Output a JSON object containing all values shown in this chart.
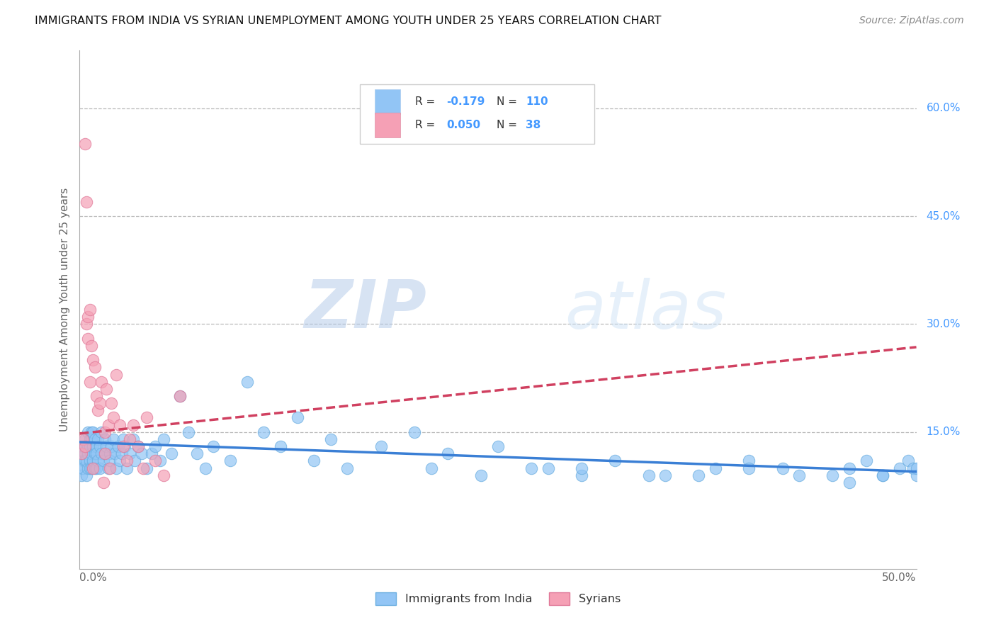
{
  "title": "IMMIGRANTS FROM INDIA VS SYRIAN UNEMPLOYMENT AMONG YOUTH UNDER 25 YEARS CORRELATION CHART",
  "source": "Source: ZipAtlas.com",
  "ylabel": "Unemployment Among Youth under 25 years",
  "ytick_labels": [
    "15.0%",
    "30.0%",
    "45.0%",
    "60.0%"
  ],
  "ytick_vals": [
    0.15,
    0.3,
    0.45,
    0.6
  ],
  "xmin": 0.0,
  "xmax": 0.5,
  "ymin": -0.04,
  "ymax": 0.68,
  "legend_india_R": "-0.179",
  "legend_india_N": "110",
  "legend_syria_R": "0.050",
  "legend_syria_N": "38",
  "india_color": "#92c5f5",
  "india_edge_color": "#6aaee0",
  "syria_color": "#f5a0b5",
  "syria_edge_color": "#e07898",
  "india_line_color": "#3a7fd5",
  "syria_line_color": "#d04060",
  "text_color_blue": "#4499ff",
  "watermark_zip": "ZIP",
  "watermark_atlas": "atlas",
  "india_trend_x0": 0.0,
  "india_trend_x1": 0.5,
  "india_trend_y0": 0.136,
  "india_trend_y1": 0.095,
  "syria_trend_x0": 0.0,
  "syria_trend_x1": 0.5,
  "syria_trend_y0": 0.148,
  "syria_trend_y1": 0.268,
  "india_scatter_x": [
    0.001,
    0.001,
    0.001,
    0.002,
    0.002,
    0.002,
    0.003,
    0.003,
    0.003,
    0.004,
    0.004,
    0.004,
    0.005,
    0.005,
    0.005,
    0.005,
    0.006,
    0.006,
    0.006,
    0.006,
    0.007,
    0.007,
    0.007,
    0.007,
    0.008,
    0.008,
    0.008,
    0.009,
    0.009,
    0.009,
    0.01,
    0.01,
    0.01,
    0.011,
    0.011,
    0.012,
    0.012,
    0.013,
    0.013,
    0.014,
    0.015,
    0.015,
    0.016,
    0.017,
    0.018,
    0.018,
    0.019,
    0.02,
    0.021,
    0.022,
    0.023,
    0.024,
    0.025,
    0.026,
    0.027,
    0.028,
    0.03,
    0.032,
    0.033,
    0.035,
    0.037,
    0.04,
    0.043,
    0.045,
    0.048,
    0.05,
    0.055,
    0.06,
    0.065,
    0.07,
    0.075,
    0.08,
    0.09,
    0.1,
    0.11,
    0.12,
    0.13,
    0.14,
    0.15,
    0.16,
    0.18,
    0.2,
    0.22,
    0.25,
    0.28,
    0.3,
    0.32,
    0.35,
    0.38,
    0.4,
    0.42,
    0.45,
    0.46,
    0.47,
    0.48,
    0.49,
    0.495,
    0.498,
    0.5,
    0.5,
    0.48,
    0.46,
    0.43,
    0.4,
    0.37,
    0.34,
    0.3,
    0.27,
    0.24,
    0.21
  ],
  "india_scatter_y": [
    0.12,
    0.1,
    0.09,
    0.13,
    0.11,
    0.1,
    0.14,
    0.12,
    0.11,
    0.13,
    0.11,
    0.09,
    0.15,
    0.13,
    0.12,
    0.1,
    0.14,
    0.13,
    0.11,
    0.1,
    0.15,
    0.14,
    0.12,
    0.1,
    0.15,
    0.13,
    0.11,
    0.14,
    0.12,
    0.1,
    0.13,
    0.12,
    0.1,
    0.14,
    0.11,
    0.13,
    0.1,
    0.15,
    0.12,
    0.11,
    0.14,
    0.12,
    0.13,
    0.1,
    0.12,
    0.11,
    0.13,
    0.14,
    0.12,
    0.1,
    0.13,
    0.11,
    0.12,
    0.14,
    0.13,
    0.1,
    0.12,
    0.14,
    0.11,
    0.13,
    0.12,
    0.1,
    0.12,
    0.13,
    0.11,
    0.14,
    0.12,
    0.2,
    0.15,
    0.12,
    0.1,
    0.13,
    0.11,
    0.22,
    0.15,
    0.13,
    0.17,
    0.11,
    0.14,
    0.1,
    0.13,
    0.15,
    0.12,
    0.13,
    0.1,
    0.09,
    0.11,
    0.09,
    0.1,
    0.11,
    0.1,
    0.09,
    0.1,
    0.11,
    0.09,
    0.1,
    0.11,
    0.1,
    0.09,
    0.1,
    0.09,
    0.08,
    0.09,
    0.1,
    0.09,
    0.09,
    0.1,
    0.1,
    0.09,
    0.1
  ],
  "syria_scatter_x": [
    0.001,
    0.002,
    0.003,
    0.003,
    0.004,
    0.004,
    0.005,
    0.005,
    0.006,
    0.006,
    0.007,
    0.008,
    0.008,
    0.009,
    0.01,
    0.011,
    0.012,
    0.013,
    0.014,
    0.015,
    0.015,
    0.016,
    0.017,
    0.018,
    0.019,
    0.02,
    0.022,
    0.024,
    0.026,
    0.028,
    0.03,
    0.032,
    0.035,
    0.038,
    0.04,
    0.045,
    0.05,
    0.06
  ],
  "syria_scatter_y": [
    0.12,
    0.14,
    0.55,
    0.13,
    0.47,
    0.3,
    0.31,
    0.28,
    0.32,
    0.22,
    0.27,
    0.25,
    0.1,
    0.24,
    0.2,
    0.18,
    0.19,
    0.22,
    0.08,
    0.15,
    0.12,
    0.21,
    0.16,
    0.1,
    0.19,
    0.17,
    0.23,
    0.16,
    0.13,
    0.11,
    0.14,
    0.16,
    0.13,
    0.1,
    0.17,
    0.11,
    0.09,
    0.2
  ]
}
